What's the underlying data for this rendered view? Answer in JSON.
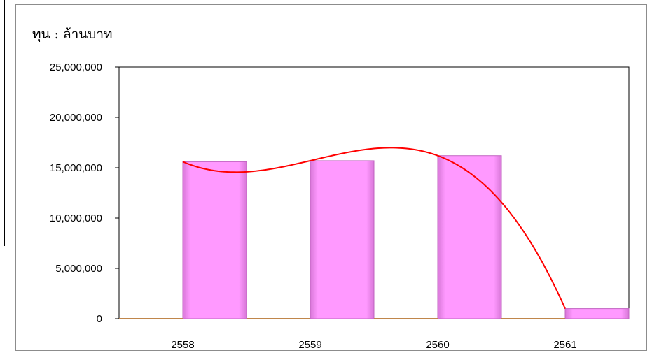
{
  "chart_data": {
    "type": "bar",
    "unit_label": "ทุน : ล้านบาท",
    "categories": [
      "2558",
      "2559",
      "2560",
      "2561"
    ],
    "series": [
      {
        "values": [
          15600000,
          15700000,
          16200000,
          1000000
        ]
      }
    ],
    "trendline": {
      "type": "polynomial",
      "values": [
        15600000,
        15700000,
        16200000,
        1000000
      ]
    },
    "ylim": [
      0,
      25000000
    ],
    "yticks": [
      0,
      5000000,
      10000000,
      15000000,
      20000000,
      25000000
    ],
    "ytick_labels": [
      "0",
      "5,000,000",
      "10,000,000",
      "15,000,000",
      "20,000,000",
      "25,000,000"
    ],
    "grid": false,
    "colors": {
      "bar": "#ff99ff",
      "bar_edge": "#c264c2",
      "trend": "#ff0000",
      "baseline": "#c0864b"
    }
  }
}
